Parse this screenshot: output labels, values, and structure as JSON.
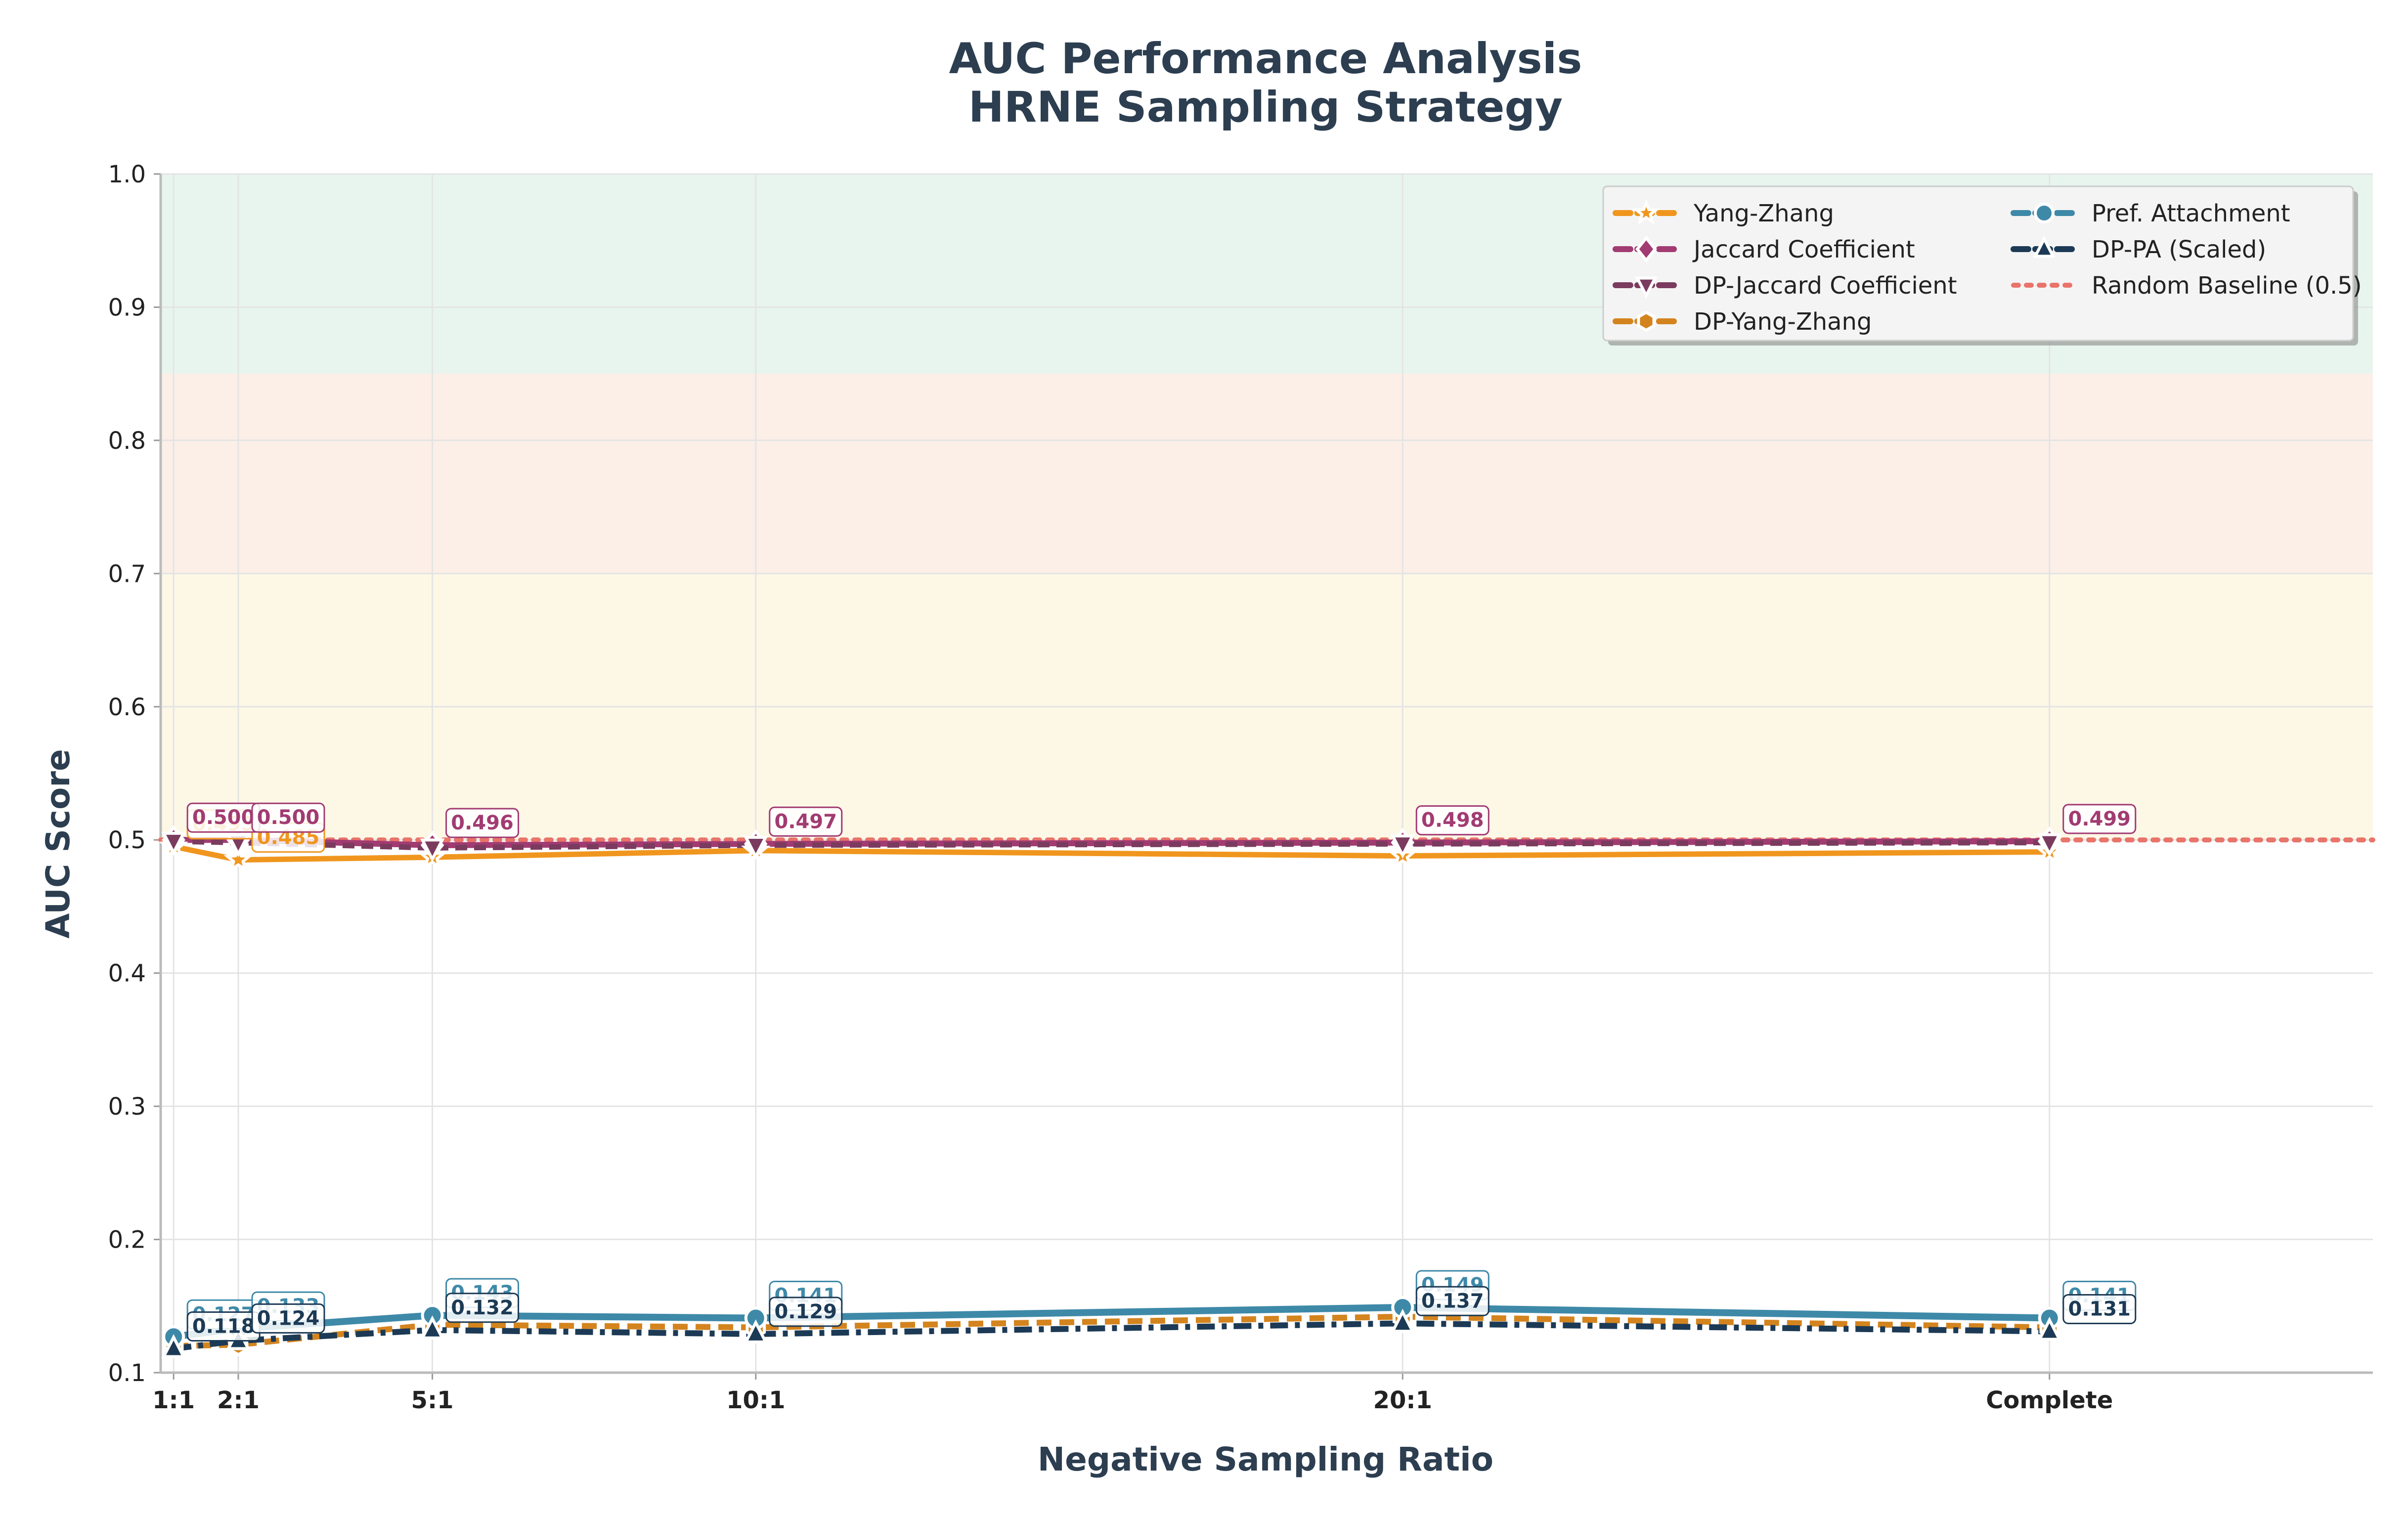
{
  "chart_data": {
    "type": "line",
    "title": "AUC Performance Analysis",
    "subtitle": "HRNE Sampling Strategy",
    "xlabel": "Negative Sampling Ratio",
    "ylabel": "AUC Score",
    "ylim": [
      0.1,
      1.0
    ],
    "yticks": [
      "0.1",
      "0.2",
      "0.3",
      "0.4",
      "0.5",
      "0.6",
      "0.7",
      "0.8",
      "0.9",
      "1.0"
    ],
    "categories": [
      "1:1",
      "2:1",
      "5:1",
      "10:1",
      "20:1",
      "Complete"
    ],
    "x": [
      1,
      2,
      5,
      10,
      20,
      30
    ],
    "xlim": [
      0.8,
      35
    ],
    "grid": true,
    "legend_position": "top-right",
    "bands": [
      {
        "from": 0.85,
        "to": 1.0,
        "color": "#e8f5ee"
      },
      {
        "from": 0.7,
        "to": 0.85,
        "color": "#fcefe8"
      },
      {
        "from": 0.5,
        "to": 0.7,
        "color": "#fdf7e6"
      }
    ],
    "series": [
      {
        "name": "Yang-Zhang",
        "values": [
          0.495,
          0.485,
          0.487,
          0.492,
          0.488,
          0.491
        ],
        "color": "#f0961e",
        "dash": "",
        "width": 11,
        "marker": "star",
        "labels": [
          "0.495",
          "0.485",
          "",
          "",
          "",
          ""
        ]
      },
      {
        "name": "Jaccard Coefficient",
        "values": [
          0.5,
          0.5,
          0.496,
          0.497,
          0.498,
          0.499
        ],
        "color": "#a23b72",
        "dash": "",
        "width": 12,
        "marker": "diamond",
        "labels": [
          "0.500",
          "0.500",
          "0.496",
          "0.497",
          "0.498",
          "0.499"
        ]
      },
      {
        "name": "DP-Jaccard Coefficient",
        "values": [
          0.499,
          0.498,
          0.494,
          0.496,
          0.497,
          0.498
        ],
        "color": "#7a3b5e",
        "dash": "24,14",
        "width": 11,
        "marker": "triangle-down",
        "labels": [
          "",
          "",
          "",
          "",
          "",
          ""
        ]
      },
      {
        "name": "DP-Yang-Zhang",
        "values": [
          0.12,
          0.121,
          0.136,
          0.134,
          0.142,
          0.134
        ],
        "color": "#d4841e",
        "dash": "30,16",
        "width": 12,
        "marker": "hexagon",
        "labels": [
          "",
          "",
          "",
          "",
          "",
          ""
        ]
      },
      {
        "name": "Pref. Attachment",
        "values": [
          0.127,
          0.133,
          0.143,
          0.141,
          0.149,
          0.141
        ],
        "color": "#3e89a8",
        "dash": "",
        "width": 14,
        "marker": "circle",
        "labels": [
          "0.127",
          "0.133",
          "0.143",
          "0.141",
          "0.149",
          "0.141"
        ]
      },
      {
        "name": "DP-PA (Scaled)",
        "values": [
          0.118,
          0.124,
          0.132,
          0.129,
          0.137,
          0.131
        ],
        "color": "#1c3a55",
        "dash": "36,14,10,14",
        "width": 12,
        "marker": "triangle-up",
        "labels": [
          "0.118",
          "0.124",
          "0.132",
          "0.129",
          "0.137",
          "0.131"
        ]
      }
    ],
    "baseline": {
      "name": "Random Baseline (0.5)",
      "value": 0.5,
      "color": "#e8746a"
    }
  }
}
